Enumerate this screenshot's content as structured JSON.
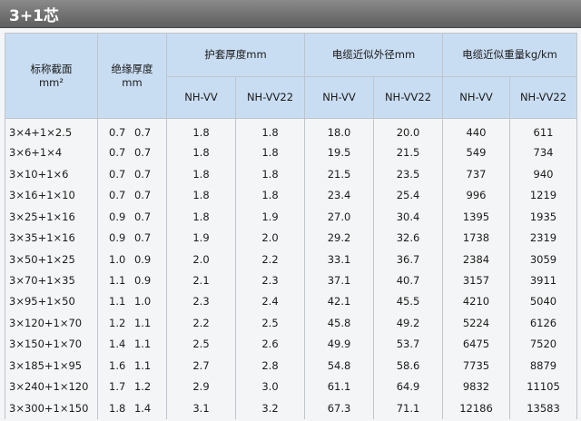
{
  "title": "3+1芯",
  "headers": {
    "nominal_section": "标称截面",
    "nominal_unit": "mm²",
    "insulation": "绝缘厚度",
    "insulation_unit": "mm",
    "sheath": "护套厚度mm",
    "outer_diameter": "电缆近似外径mm",
    "weight": "电缆近似重量kg/km",
    "sub": [
      "NH-VV",
      "NH-VV22",
      "NH-VV",
      "NH-VV22",
      "NH-VV",
      "NH-VV22"
    ]
  },
  "rows": [
    [
      "3×4+1×2.5",
      "0.7  0.7",
      "1.8",
      "1.8",
      "18.0",
      "20.0",
      "440",
      "611"
    ],
    [
      "3×6+1×4",
      "0.7  0.7",
      "1.8",
      "1.8",
      "19.5",
      "21.5",
      "549",
      "734"
    ],
    [
      "3×10+1×6",
      "0.7  0.7",
      "1.8",
      "1.8",
      "21.5",
      "23.5",
      "737",
      "940"
    ],
    [
      "3×16+1×10",
      "0.7  0.7",
      "1.8",
      "1.8",
      "23.4",
      "25.4",
      "996",
      "1219"
    ],
    [
      "3×25+1×16",
      "0.9  0.7",
      "1.8",
      "1.9",
      "27.0",
      "30.4",
      "1395",
      "1935"
    ],
    [
      "3×35+1×16",
      "0.9  0.7",
      "1.9",
      "2.0",
      "29.2",
      "32.6",
      "1738",
      "2319"
    ],
    [
      "3×50+1×25",
      "1.0  0.9",
      "2.0",
      "2.2",
      "33.1",
      "36.7",
      "2384",
      "3059"
    ],
    [
      "3×70+1×35",
      "1.1  0.9",
      "2.1",
      "2.3",
      "37.1",
      "40.7",
      "3157",
      "3911"
    ],
    [
      "3×95+1×50",
      "1.1  1.0",
      "2.3",
      "2.4",
      "42.1",
      "45.5",
      "4210",
      "5040"
    ],
    [
      "3×120+1×70",
      "1.2  1.1",
      "2.2",
      "2.5",
      "45.8",
      "49.2",
      "5224",
      "6126"
    ],
    [
      "3×150+1×70",
      "1.4  1.1",
      "2.5",
      "2.6",
      "49.9",
      "53.7",
      "6475",
      "7520"
    ],
    [
      "3×185+1×95",
      "1.6  1.1",
      "2.7",
      "2.8",
      "54.8",
      "58.6",
      "7735",
      "8879"
    ],
    [
      "3×240+1×120",
      "1.7  1.2",
      "2.9",
      "3.0",
      "61.1",
      "64.9",
      "9832",
      "11105"
    ],
    [
      "3×300+1×150",
      "1.8  1.4",
      "3.1",
      "3.2",
      "67.3",
      "71.1",
      "12186",
      "13583"
    ]
  ]
}
